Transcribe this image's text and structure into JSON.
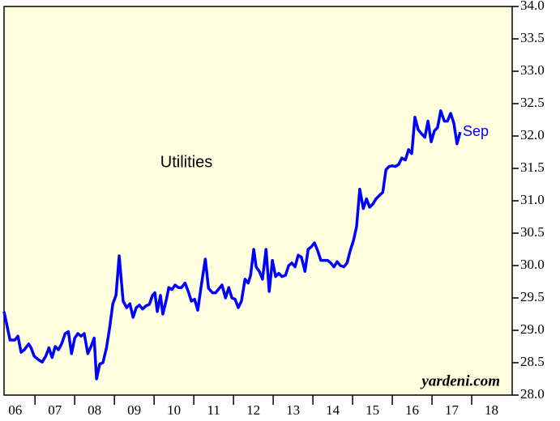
{
  "chart_data": {
    "type": "line",
    "annotations": [
      "Utilities",
      "Sep",
      "yardeni.com"
    ],
    "series": [
      {
        "color": "#0000ff",
        "x": [
          2006.22,
          2006.37,
          2006.49,
          2006.57,
          2006.65,
          2006.73,
          2006.84,
          2006.9,
          2006.98,
          2007.1,
          2007.18,
          2007.27,
          2007.35,
          2007.43,
          2007.51,
          2007.59,
          2007.67,
          2007.76,
          2007.84,
          2007.92,
          2008.0,
          2008.08,
          2008.16,
          2008.24,
          2008.33,
          2008.41,
          2008.49,
          2008.55,
          2008.63,
          2008.71,
          2008.8,
          2008.88,
          2008.96,
          2009.04,
          2009.12,
          2009.22,
          2009.31,
          2009.39,
          2009.47,
          2009.55,
          2009.63,
          2009.71,
          2009.8,
          2009.88,
          2009.96,
          2010.02,
          2010.08,
          2010.16,
          2010.22,
          2010.31,
          2010.37,
          2010.45,
          2010.53,
          2010.61,
          2010.69,
          2010.78,
          2010.86,
          2010.94,
          2011.02,
          2011.1,
          2011.18,
          2011.29,
          2011.37,
          2011.47,
          2011.55,
          2011.63,
          2011.71,
          2011.8,
          2011.88,
          2011.96,
          2012.04,
          2012.12,
          2012.2,
          2012.29,
          2012.37,
          2012.43,
          2012.51,
          2012.57,
          2012.65,
          2012.73,
          2012.82,
          2012.9,
          2012.98,
          2013.06,
          2013.14,
          2013.22,
          2013.31,
          2013.39,
          2013.47,
          2013.55,
          2013.63,
          2013.71,
          2013.8,
          2013.88,
          2013.96,
          2014.04,
          2014.12,
          2014.2,
          2014.29,
          2014.37,
          2014.45,
          2014.53,
          2014.61,
          2014.69,
          2014.78,
          2014.86,
          2014.94,
          2015.02,
          2015.1,
          2015.18,
          2015.27,
          2015.35,
          2015.43,
          2015.51,
          2015.59,
          2015.67,
          2015.76,
          2015.84,
          2015.92,
          2016.0,
          2016.08,
          2016.16,
          2016.24,
          2016.33,
          2016.41,
          2016.49,
          2016.57,
          2016.65,
          2016.73,
          2016.82,
          2016.9,
          2016.98,
          2017.06,
          2017.14,
          2017.22,
          2017.31,
          2017.39,
          2017.47,
          2017.55,
          2017.63,
          2017.71
        ],
        "values": [
          29.29,
          28.85,
          28.85,
          28.91,
          28.66,
          28.7,
          28.79,
          28.73,
          28.6,
          28.54,
          28.51,
          28.6,
          28.73,
          28.58,
          28.75,
          28.7,
          28.79,
          28.95,
          28.98,
          28.64,
          28.88,
          28.95,
          28.91,
          28.95,
          28.64,
          28.75,
          28.88,
          28.25,
          28.48,
          28.5,
          28.73,
          29.04,
          29.41,
          29.54,
          30.15,
          29.45,
          29.35,
          29.41,
          29.2,
          29.35,
          29.39,
          29.33,
          29.38,
          29.4,
          29.54,
          29.58,
          29.29,
          29.54,
          29.25,
          29.48,
          29.66,
          29.63,
          29.7,
          29.66,
          29.66,
          29.73,
          29.6,
          29.45,
          29.48,
          29.31,
          29.66,
          30.1,
          29.65,
          29.58,
          29.58,
          29.64,
          29.7,
          29.5,
          29.66,
          29.5,
          29.48,
          29.35,
          29.45,
          29.79,
          29.73,
          29.85,
          30.25,
          29.98,
          29.91,
          29.79,
          30.25,
          29.6,
          30.08,
          29.83,
          29.88,
          29.83,
          29.85,
          30.0,
          30.04,
          29.98,
          30.16,
          30.13,
          29.91,
          30.25,
          30.29,
          30.35,
          30.23,
          30.08,
          30.08,
          30.08,
          30.04,
          29.98,
          30.06,
          30.0,
          29.98,
          30.04,
          30.23,
          30.38,
          30.6,
          31.18,
          30.88,
          31.03,
          30.9,
          30.95,
          31.03,
          31.08,
          31.13,
          31.48,
          31.53,
          31.54,
          31.53,
          31.56,
          31.66,
          31.63,
          31.79,
          31.73,
          32.29,
          32.1,
          32.04,
          31.98,
          32.23,
          31.91,
          32.08,
          32.13,
          32.39,
          32.23,
          32.23,
          32.35,
          32.2,
          31.88,
          32.06
        ]
      }
    ],
    "xlim": [
      2006.22,
      2019.02
    ],
    "xticks": [
      {
        "value": 2006.5,
        "label": "06"
      },
      {
        "value": 2007.5,
        "label": "07"
      },
      {
        "value": 2008.5,
        "label": "08"
      },
      {
        "value": 2009.5,
        "label": "09"
      },
      {
        "value": 2010.5,
        "label": "10"
      },
      {
        "value": 2011.5,
        "label": "11"
      },
      {
        "value": 2012.5,
        "label": "12"
      },
      {
        "value": 2013.5,
        "label": "13"
      },
      {
        "value": 2014.5,
        "label": "14"
      },
      {
        "value": 2015.5,
        "label": "15"
      },
      {
        "value": 2016.5,
        "label": "16"
      },
      {
        "value": 2017.5,
        "label": "17"
      },
      {
        "value": 2018.5,
        "label": "18"
      }
    ],
    "ylim": [
      28,
      34
    ],
    "yticks": [
      {
        "value": 28,
        "label": "28.0"
      },
      {
        "value": 28.5,
        "label": "28.5"
      },
      {
        "value": 29,
        "label": "29.0"
      },
      {
        "value": 29.5,
        "label": "29.5"
      },
      {
        "value": 30,
        "label": "30.0"
      },
      {
        "value": 30.5,
        "label": "30.5"
      },
      {
        "value": 31,
        "label": "31.0"
      },
      {
        "value": 31.5,
        "label": "31.5"
      },
      {
        "value": 32,
        "label": "32.0"
      },
      {
        "value": 32.5,
        "label": "32.5"
      },
      {
        "value": 33,
        "label": "33.0"
      },
      {
        "value": 33.5,
        "label": "33.5"
      },
      {
        "value": 34,
        "label": "34.0"
      }
    ],
    "background": "#ffffe0"
  }
}
